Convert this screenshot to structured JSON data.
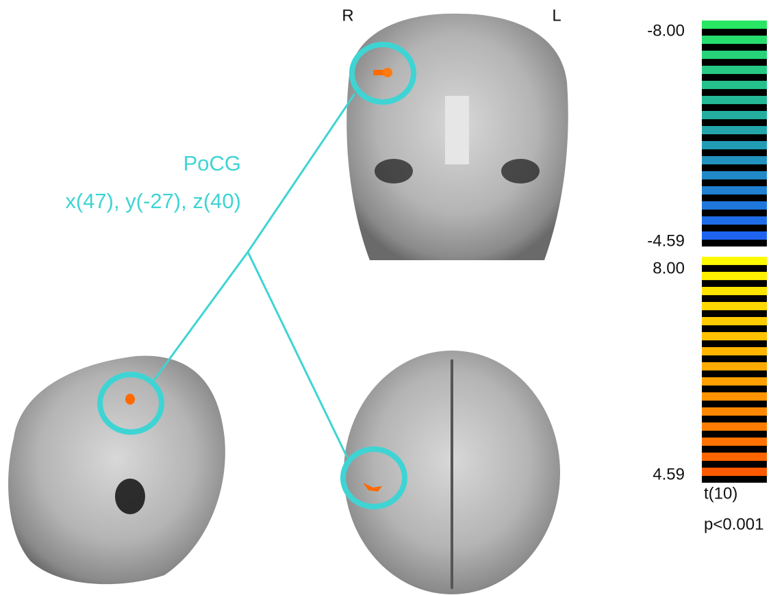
{
  "orientation": {
    "right": "R",
    "left": "L"
  },
  "annotation": {
    "region": "PoCG",
    "coordinates": "x(47), y(-27), z(40)"
  },
  "colorbar": {
    "negative_max": "-8.00",
    "negative_min": "-4.59",
    "positive_max": "8.00",
    "positive_min": "4.59",
    "statistic": "t(10)",
    "threshold": "p<0.001"
  }
}
